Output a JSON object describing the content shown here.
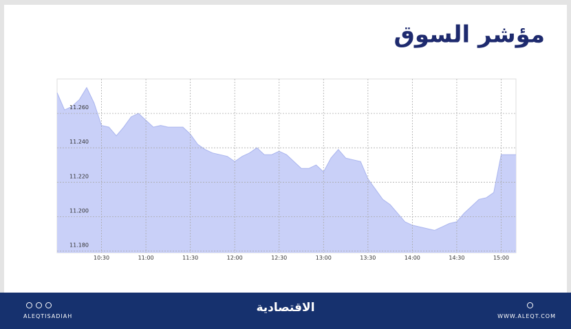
{
  "chart_data": {
    "type": "area",
    "title": "مؤشر السوق",
    "x": [
      "10:00",
      "10:05",
      "10:10",
      "10:15",
      "10:20",
      "10:25",
      "10:30",
      "10:35",
      "10:40",
      "10:45",
      "10:50",
      "10:55",
      "11:00",
      "11:05",
      "11:10",
      "11:15",
      "11:20",
      "11:25",
      "11:30",
      "11:35",
      "11:40",
      "11:45",
      "11:50",
      "11:55",
      "12:00",
      "12:05",
      "12:10",
      "12:15",
      "12:20",
      "12:25",
      "12:30",
      "12:35",
      "12:40",
      "12:45",
      "12:50",
      "12:55",
      "13:00",
      "13:05",
      "13:10",
      "13:15",
      "13:20",
      "13:25",
      "13:30",
      "13:35",
      "13:40",
      "13:45",
      "13:50",
      "13:55",
      "14:00",
      "14:05",
      "14:10",
      "14:15",
      "14:20",
      "14:25",
      "14:30",
      "14:35",
      "14:40",
      "14:45",
      "14:50",
      "14:55",
      "15:00",
      "15:05",
      "15:10"
    ],
    "values": [
      11.272,
      11.262,
      11.264,
      11.268,
      11.275,
      11.266,
      11.253,
      11.252,
      11.247,
      11.252,
      11.258,
      11.26,
      11.256,
      11.252,
      11.253,
      11.252,
      11.252,
      11.252,
      11.248,
      11.242,
      11.239,
      11.237,
      11.236,
      11.235,
      11.232,
      11.235,
      11.237,
      11.24,
      11.236,
      11.236,
      11.238,
      11.236,
      11.232,
      11.228,
      11.228,
      11.23,
      11.226,
      11.234,
      11.239,
      11.234,
      11.233,
      11.232,
      11.222,
      11.216,
      11.21,
      11.207,
      11.202,
      11.197,
      11.195,
      11.194,
      11.193,
      11.192,
      11.194,
      11.196,
      11.197,
      11.202,
      11.206,
      11.21,
      11.211,
      11.214,
      11.236,
      11.236,
      11.236
    ],
    "color": "#aab5ee",
    "fill": "#c9d0f8",
    "xlim": [
      "10:00",
      "15:10"
    ],
    "xticks": [
      "10:30",
      "11:00",
      "11:30",
      "12:00",
      "12:30",
      "13:00",
      "13:30",
      "14:00",
      "14:30",
      "15:00"
    ],
    "ylim": [
      11.179,
      11.28
    ],
    "yticks": [
      {
        "value": 11.18,
        "label": "11.180"
      },
      {
        "value": 11.2,
        "label": "11.200"
      },
      {
        "value": 11.22,
        "label": "11.220"
      },
      {
        "value": 11.24,
        "label": "11.240"
      },
      {
        "value": 11.26,
        "label": "11.260"
      }
    ],
    "grid": true
  },
  "footer": {
    "handle": "ALEQTISADIAH",
    "brand": "الاقتصادية",
    "website": "WWW.ALEQT.COM"
  }
}
